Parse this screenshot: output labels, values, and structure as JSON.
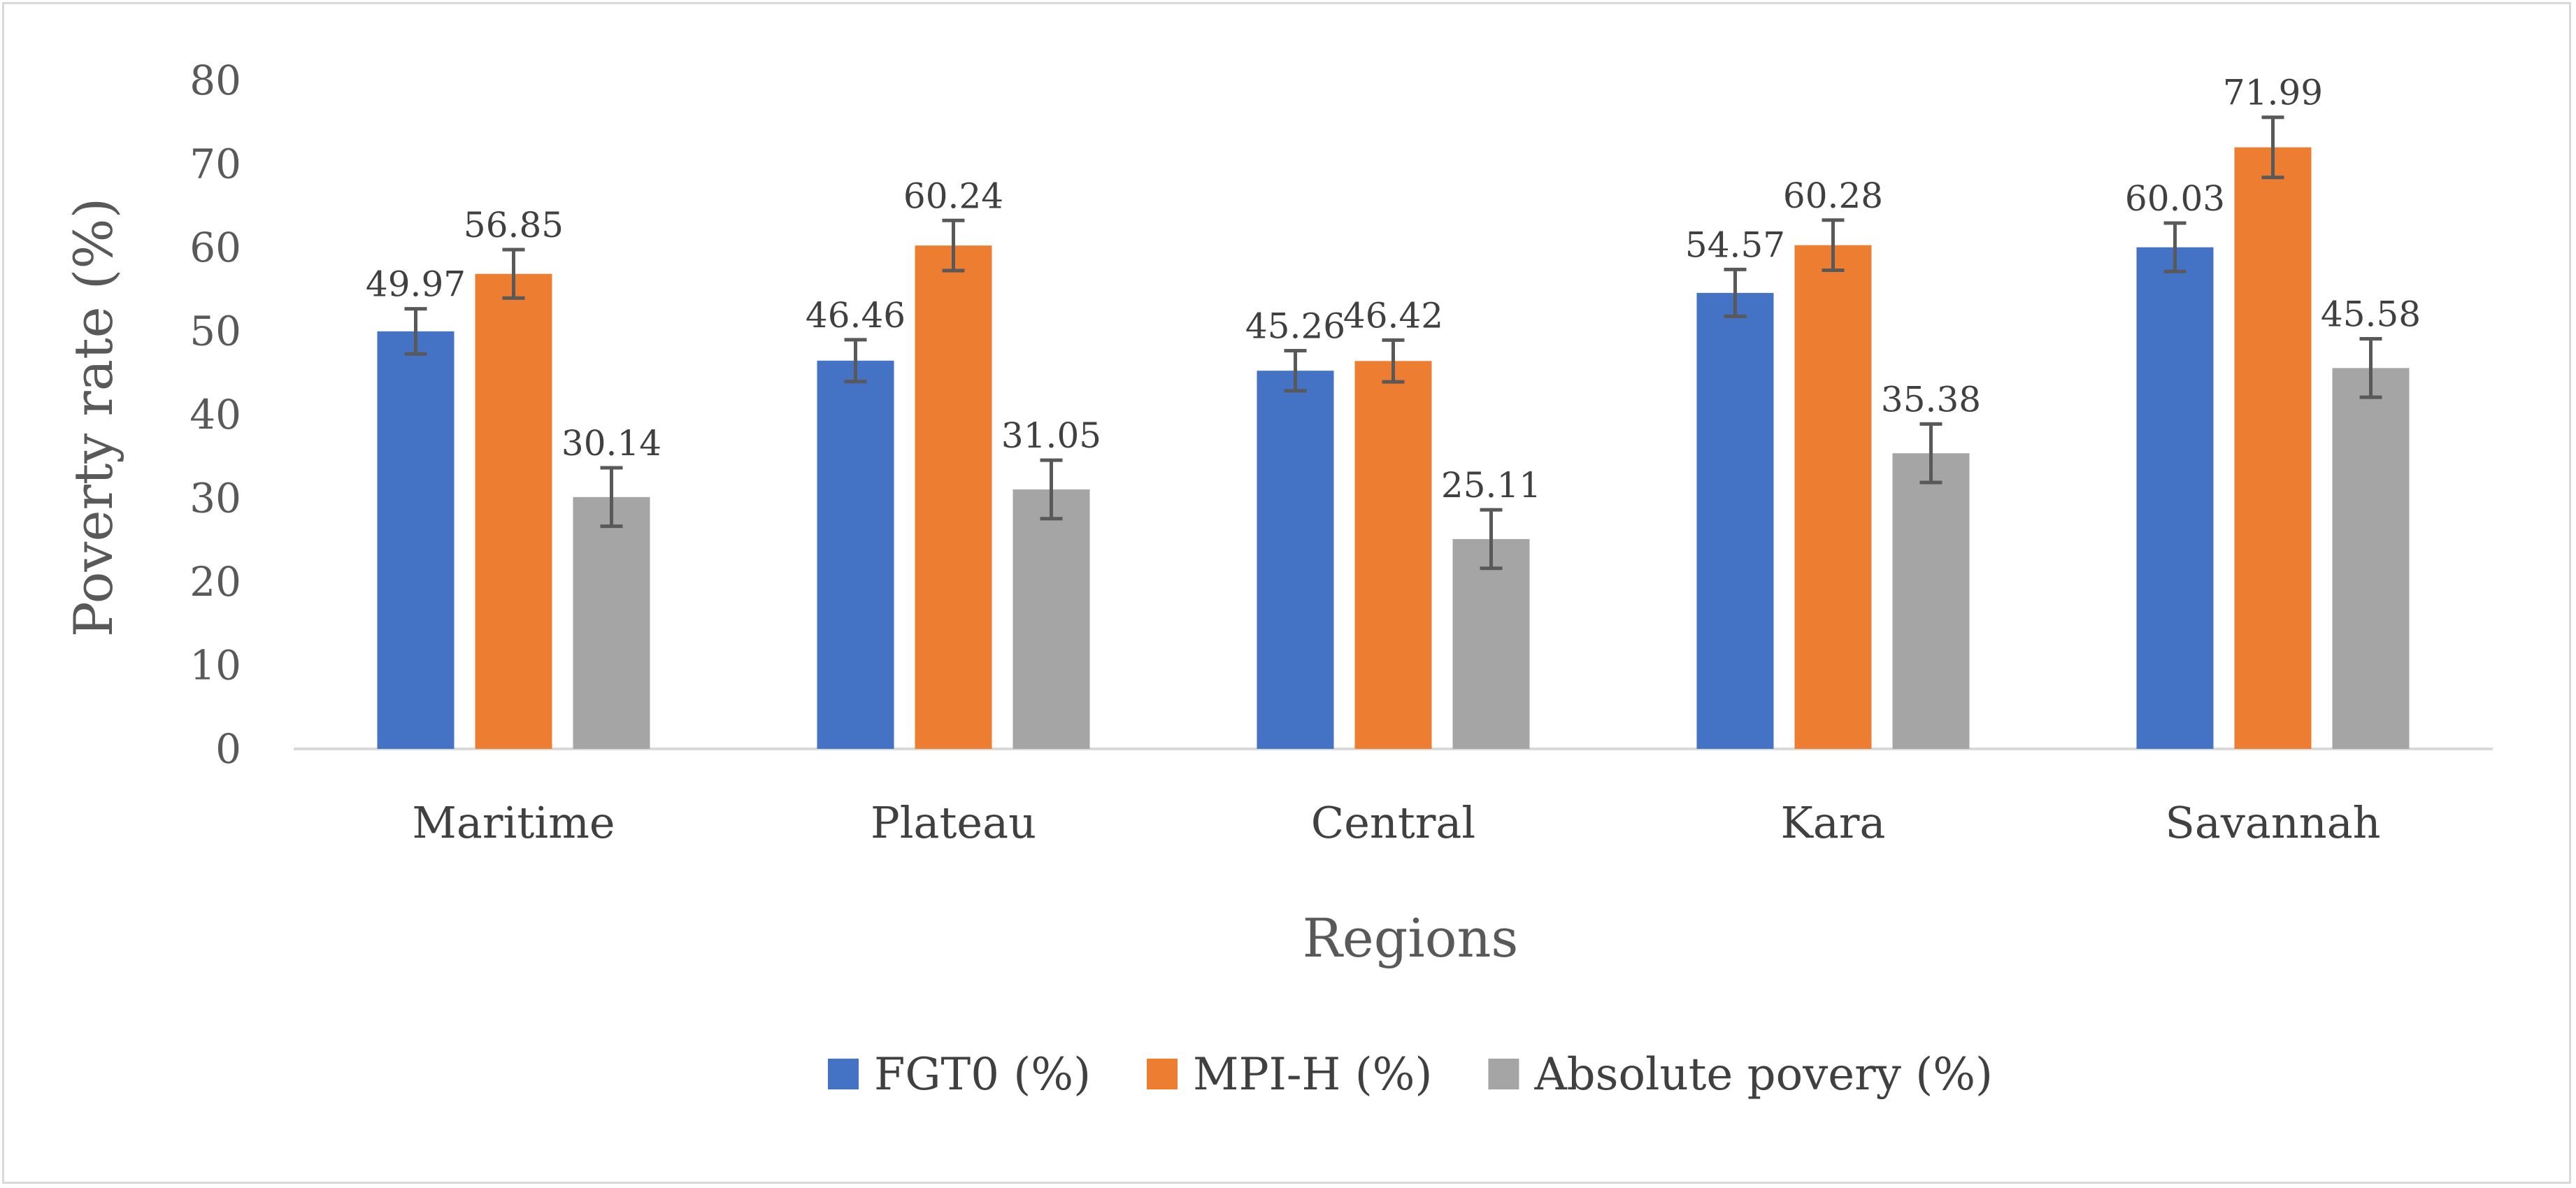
{
  "chart_data": {
    "type": "bar",
    "categories": [
      "Maritime",
      "Plateau",
      "Central",
      "Kara",
      "Savannah"
    ],
    "series": [
      {
        "name": "FGT0 (%)",
        "color": "#4472c4",
        "values": [
          49.97,
          46.46,
          45.26,
          54.57,
          60.03
        ],
        "error": [
          2.7,
          2.5,
          2.4,
          2.8,
          2.9
        ]
      },
      {
        "name": "MPI-H (%)",
        "color": "#ed7d31",
        "values": [
          56.85,
          60.24,
          46.42,
          60.28,
          71.99
        ],
        "error": [
          2.9,
          3.0,
          2.5,
          3.0,
          3.6
        ]
      },
      {
        "name": "Absolute povery (%)",
        "color": "#a5a5a5",
        "values": [
          30.14,
          31.05,
          25.11,
          35.38,
          45.58
        ],
        "error": [
          3.5,
          3.5,
          3.5,
          3.5,
          3.5
        ]
      }
    ],
    "yticks": [
      "0",
      "10",
      "20",
      "30",
      "40",
      "50",
      "60",
      "70",
      "80"
    ],
    "ylim": [
      0,
      80
    ],
    "xlabel": "Regions",
    "ylabel": "Poverty rate (%)",
    "title": "",
    "legend_position": "bottom",
    "grid": false,
    "error_bar_color": "#595959"
  }
}
